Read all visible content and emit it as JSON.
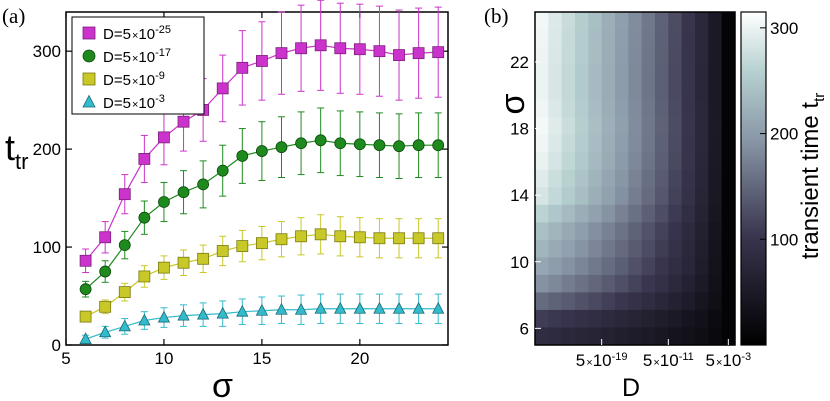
{
  "chart_data": [
    {
      "type": "line",
      "panel_label": "(a)",
      "xlabel": "σ",
      "ylabel_main": "t",
      "ylabel_sub": "tr",
      "xlim": [
        5,
        24.5
      ],
      "ylim": [
        0,
        340
      ],
      "xticks": [
        5,
        10,
        15,
        20
      ],
      "yticks": [
        0,
        100,
        200,
        300
      ],
      "x": [
        6,
        7,
        8,
        9,
        10,
        11,
        12,
        13,
        14,
        15,
        16,
        17,
        18,
        19,
        20,
        21,
        22,
        23,
        24
      ],
      "series": [
        {
          "name": "D=5×10^-25",
          "legend_base": "D=5",
          "legend_times": "×",
          "legend_ten": "10",
          "legend_exp": "-25",
          "marker": "square",
          "color": "#cc33cc",
          "edge": "#7a1f7a",
          "values": [
            86,
            110,
            154,
            190,
            212,
            228,
            240,
            262,
            283,
            290,
            298,
            303,
            306,
            303,
            302,
            300,
            296,
            298,
            299
          ],
          "errors": [
            12,
            16,
            20,
            24,
            28,
            30,
            32,
            34,
            38,
            40,
            42,
            44,
            46,
            46,
            46,
            46,
            46,
            46,
            46
          ]
        },
        {
          "name": "D=5×10^-17",
          "legend_base": "D=5",
          "legend_times": "×",
          "legend_ten": "10",
          "legend_exp": "-17",
          "marker": "circle",
          "color": "#1e8a1e",
          "edge": "#0b4a0b",
          "values": [
            57,
            75,
            102,
            130,
            146,
            156,
            164,
            178,
            193,
            198,
            202,
            206,
            209,
            206,
            205,
            204,
            203,
            204,
            204
          ],
          "errors": [
            8,
            11,
            14,
            17,
            20,
            22,
            24,
            26,
            28,
            30,
            31,
            32,
            33,
            33,
            33,
            33,
            33,
            33,
            33
          ]
        },
        {
          "name": "D=5×10^-9",
          "legend_base": "D=5",
          "legend_times": "×",
          "legend_ten": "10",
          "legend_exp": "-9",
          "marker": "square",
          "color": "#c8c828",
          "edge": "#7a7a10",
          "values": [
            29,
            39,
            54,
            70,
            79,
            84,
            88,
            96,
            101,
            104,
            108,
            111,
            113,
            111,
            110,
            109,
            109,
            109,
            109
          ],
          "errors": [
            5,
            7,
            9,
            11,
            12,
            13,
            14,
            15,
            16,
            17,
            18,
            19,
            20,
            20,
            20,
            20,
            20,
            20,
            20
          ]
        },
        {
          "name": "D=5×10^-3",
          "legend_base": "D=5",
          "legend_times": "×",
          "legend_ten": "10",
          "legend_exp": "-3",
          "marker": "triangle",
          "color": "#33bbcc",
          "edge": "#1a6a75",
          "values": [
            6,
            13,
            19,
            25,
            28,
            30,
            31,
            32,
            34,
            35,
            36,
            36,
            37,
            37,
            37,
            37,
            37,
            37,
            37
          ],
          "errors": [
            4,
            6,
            8,
            9,
            10,
            11,
            12,
            13,
            13,
            14,
            14,
            15,
            15,
            15,
            15,
            15,
            15,
            15,
            15
          ]
        }
      ]
    },
    {
      "type": "heatmap",
      "panel_label": "(b)",
      "xlabel": "D",
      "ylabel": "σ",
      "ylim": [
        5,
        25
      ],
      "yticks": [
        6,
        10,
        14,
        18,
        22
      ],
      "xtick_labels": [
        {
          "base": "5",
          "times": "×",
          "ten": "10",
          "exp": "-19"
        },
        {
          "base": "5",
          "times": "×",
          "ten": "10",
          "exp": "-11"
        },
        {
          "base": "5",
          "times": "×",
          "ten": "10",
          "exp": "-3"
        }
      ],
      "xtick_columns": [
        5,
        10,
        14.5
      ],
      "colorbar": {
        "label_main": "transient time t",
        "label_sub": "tr",
        "range": [
          0,
          315
        ],
        "ticks": [
          100,
          200,
          300
        ]
      },
      "columns": 15,
      "rows_sigma": [
        24,
        23,
        22,
        21,
        20,
        19,
        18,
        17,
        16,
        15,
        14,
        13,
        12,
        11,
        10,
        9,
        8,
        7,
        6
      ],
      "row_max": [
        305,
        303,
        302,
        300,
        300,
        303,
        306,
        303,
        298,
        290,
        283,
        262,
        240,
        228,
        212,
        190,
        154,
        110,
        86
      ]
    }
  ]
}
